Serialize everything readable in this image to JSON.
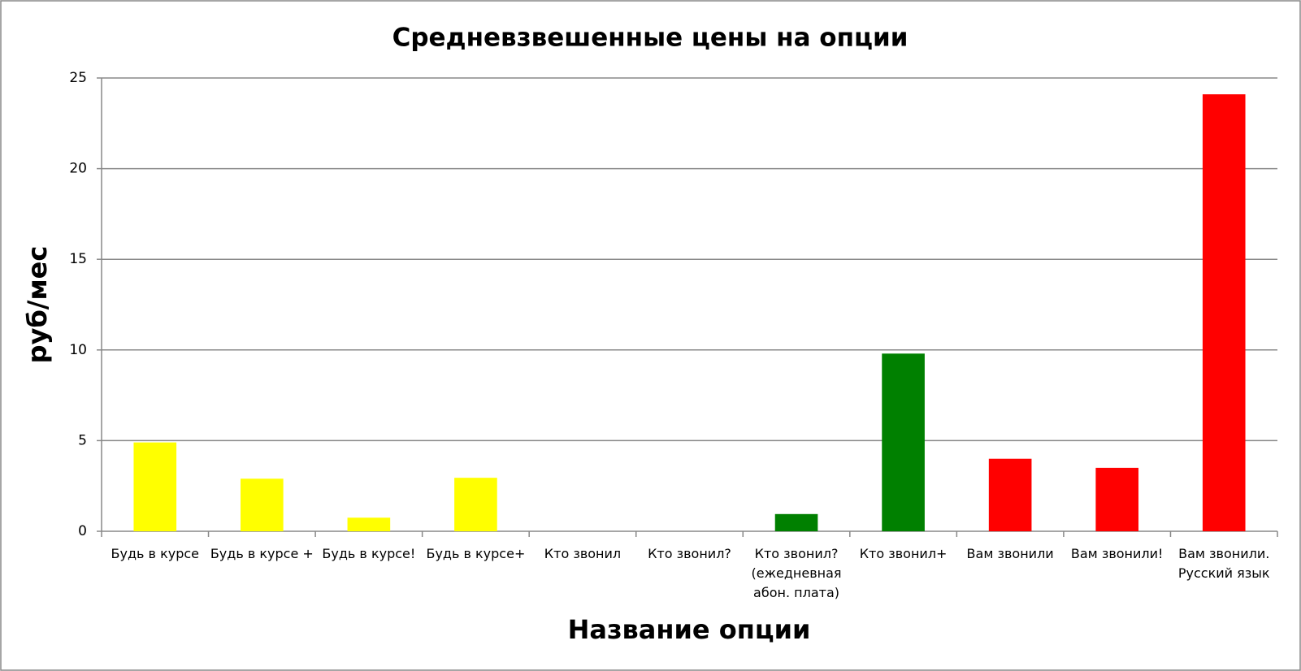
{
  "chart_data": {
    "type": "bar",
    "title": "Средневзвешенные цены на опции",
    "x_label": "Название опции",
    "y_label": "руб/мес",
    "categories": [
      "Будь в курсе",
      "Будь в курсе +",
      "Будь в курсе!",
      "Будь в курсе+",
      "Кто звонил",
      "Кто звонил?",
      "Кто звонил?\n(ежедневная\nабон. плата)",
      "Кто звонил+",
      "Вам звонили",
      "Вам звонили!",
      "Вам звонили.\nРусский язык"
    ],
    "values": [
      4.9,
      2.9,
      0.75,
      2.95,
      0,
      0,
      0.95,
      9.8,
      4.0,
      3.5,
      24.1
    ],
    "colors": [
      "#ffff00",
      "#ffff00",
      "#ffff00",
      "#ffff00",
      "#ffff00",
      "#008000",
      "#008000",
      "#008000",
      "#ff0000",
      "#ff0000",
      "#ff0000"
    ],
    "ylim": [
      0,
      25
    ],
    "yticks": [
      0,
      5,
      10,
      15,
      20,
      25
    ],
    "grid": true
  }
}
